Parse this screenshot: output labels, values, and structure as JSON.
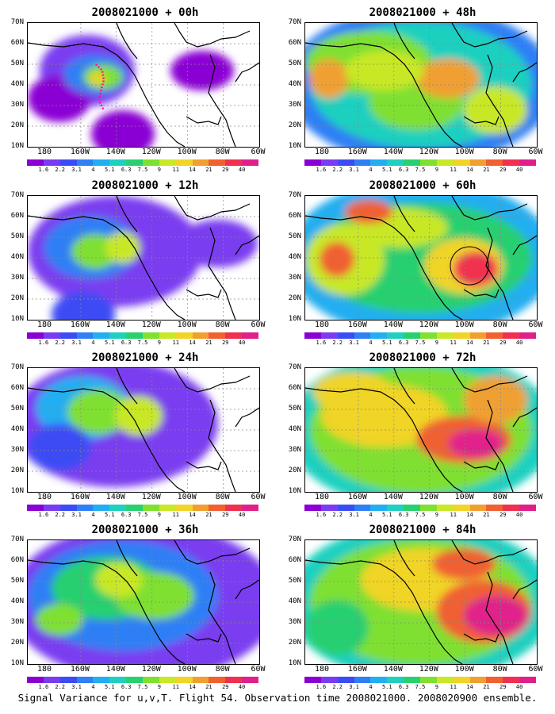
{
  "caption": "Signal Variance for u,v,T. Flight 54. Observation time 2008021000. 2008020900 ensemble.",
  "axes": {
    "lat_labels": [
      "70N",
      "60N",
      "50N",
      "40N",
      "30N",
      "20N",
      "10N"
    ],
    "lon_labels": [
      "180",
      "160W",
      "140W",
      "120W",
      "100W",
      "80W",
      "60W"
    ],
    "lat_range": [
      10,
      70
    ],
    "lon_range": [
      -190,
      -60
    ]
  },
  "colorbar": {
    "labels": [
      "1.6",
      "2.2",
      "3.1",
      "4",
      "5.1",
      "6.3",
      "7.5",
      "9",
      "11",
      "14",
      "21",
      "29",
      "40"
    ],
    "colors": [
      "#ffffff",
      "#8a00d4",
      "#7a3cf0",
      "#3c4cf5",
      "#2f7ff5",
      "#22aef0",
      "#1fd0c0",
      "#28d070",
      "#7fe030",
      "#c8e828",
      "#f0d428",
      "#f0a030",
      "#f06030",
      "#f03050",
      "#e0208a"
    ]
  },
  "panels": [
    {
      "title": "2008021000 + 00h"
    },
    {
      "title": "2008021000 + 48h"
    },
    {
      "title": "2008021000 + 12h"
    },
    {
      "title": "2008021000 + 60h"
    },
    {
      "title": "2008021000 + 24h"
    },
    {
      "title": "2008021000 + 72h"
    },
    {
      "title": "2008021000 + 36h"
    },
    {
      "title": "2008021000 + 84h"
    }
  ]
}
